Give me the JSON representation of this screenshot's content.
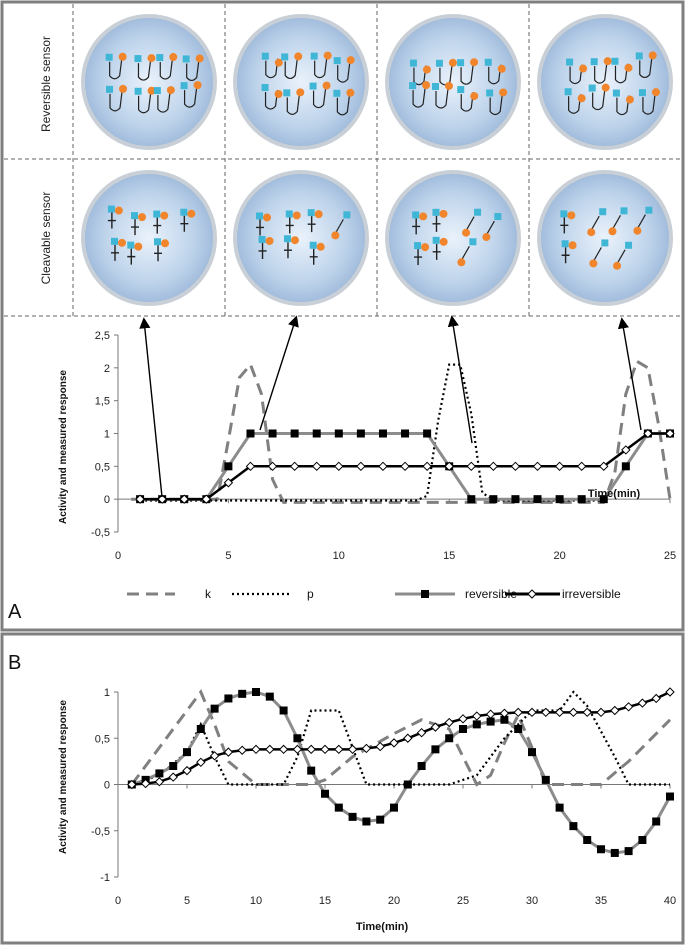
{
  "panels": {
    "a": "A",
    "b": "B"
  },
  "rows": {
    "reversible": "Reversible sensor",
    "cleavable": "Cleavable sensor"
  },
  "colors": {
    "cyan": "#3fb6d6",
    "orange": "#f0852c",
    "circle": "#c5d8ec",
    "grey_series": "#8c8c8c",
    "border": "#7f7f7f"
  },
  "chart_data": [
    {
      "type": "line",
      "panel": "A",
      "xlabel": "Time(min)",
      "ylabel": "Activity and measured  response",
      "xlim": [
        0,
        25
      ],
      "ylim": [
        -0.5,
        2.5
      ],
      "xticks": [
        "0",
        "5",
        "10",
        "15",
        "20",
        "25"
      ],
      "yticks": [
        "-0,5",
        "0",
        "0,5",
        "1",
        "1,5",
        "2",
        "2,5"
      ],
      "legend_position": "bottom",
      "series": [
        {
          "name": "k",
          "style": "dashed",
          "color": "#808080",
          "x": [
            0.6,
            4.5,
            5,
            5.5,
            6,
            6.5,
            7,
            7.5,
            8,
            22,
            22.5,
            23,
            23.5,
            24,
            24.5,
            25
          ],
          "y": [
            0,
            0,
            0.9,
            1.85,
            2.05,
            1.6,
            0.3,
            -0.05,
            -0.05,
            -0.05,
            0.4,
            1.6,
            2.1,
            2.0,
            1.1,
            0
          ]
        },
        {
          "name": "p",
          "style": "dotted",
          "color": "#000000",
          "x": [
            1,
            13.5,
            14,
            14.5,
            15,
            15.5,
            16,
            16.5,
            17,
            22
          ],
          "y": [
            -0.02,
            -0.02,
            0.05,
            1.2,
            2.05,
            2.05,
            1.3,
            0.1,
            -0.02,
            -0.02
          ]
        },
        {
          "name": "reversible",
          "style": "solid-square",
          "color": "#8c8c8c",
          "x": [
            1,
            2,
            3,
            4,
            5,
            6,
            7,
            8,
            9,
            10,
            11,
            12,
            13,
            14,
            15,
            16,
            17,
            18,
            19,
            20,
            21,
            22,
            23,
            24,
            25
          ],
          "y": [
            0,
            0,
            0,
            0,
            0.5,
            1,
            1,
            1,
            1,
            1,
            1,
            1,
            1,
            1,
            0.5,
            0,
            0,
            0,
            0,
            0,
            0,
            0,
            0.5,
            1,
            1
          ]
        },
        {
          "name": "irreversible",
          "style": "solid-diamond",
          "color": "#000000",
          "x": [
            1,
            2,
            3,
            4,
            5,
            6,
            7,
            8,
            9,
            10,
            11,
            12,
            13,
            14,
            15,
            16,
            17,
            18,
            19,
            20,
            21,
            22,
            23,
            24,
            25
          ],
          "y": [
            0,
            0,
            0,
            0,
            0.25,
            0.5,
            0.5,
            0.5,
            0.5,
            0.5,
            0.5,
            0.5,
            0.5,
            0.5,
            0.5,
            0.5,
            0.5,
            0.5,
            0.5,
            0.5,
            0.5,
            0.5,
            0.75,
            1,
            1
          ]
        }
      ]
    },
    {
      "type": "line",
      "panel": "B",
      "xlabel": "Time(min)",
      "ylabel": "Activity and measured  response",
      "xlim": [
        0,
        40
      ],
      "ylim": [
        -1,
        1
      ],
      "xticks": [
        "0",
        "5",
        "10",
        "15",
        "20",
        "25",
        "30",
        "35",
        "40"
      ],
      "yticks": [
        "-1",
        "-0,5",
        "0",
        "0,5",
        "1"
      ],
      "series": [
        {
          "name": "k",
          "style": "dashed",
          "color": "#808080",
          "x": [
            1,
            3,
            5,
            6,
            7,
            8,
            10,
            13,
            14,
            15,
            17,
            20,
            22,
            24,
            25,
            26,
            27,
            28,
            29,
            30,
            31,
            34,
            35,
            37,
            40
          ],
          "y": [
            0,
            0.4,
            0.8,
            1.0,
            0.65,
            0.25,
            0.0,
            0.0,
            0.0,
            0.05,
            0.3,
            0.55,
            0.7,
            0.6,
            0.3,
            0.0,
            0.1,
            0.45,
            0.75,
            0.4,
            0.0,
            0.0,
            0.0,
            0.25,
            0.7
          ]
        },
        {
          "name": "p",
          "style": "dotted",
          "color": "#000000",
          "x": [
            1,
            3,
            5,
            6,
            7,
            8,
            10,
            12,
            13,
            14,
            16,
            17,
            18,
            20,
            22,
            24,
            26,
            28,
            30,
            32,
            33,
            34,
            36,
            37,
            38,
            40
          ],
          "y": [
            0,
            0.1,
            0.35,
            0.65,
            0.3,
            0.0,
            0.0,
            0.0,
            0.3,
            0.8,
            0.8,
            0.4,
            0.0,
            0.0,
            0.0,
            0.0,
            0.1,
            0.5,
            0.8,
            0.8,
            1.0,
            0.85,
            0.3,
            0.0,
            0.0,
            0.0
          ]
        },
        {
          "name": "reversible",
          "style": "solid-square",
          "color": "#8c8c8c",
          "x": [
            1,
            2,
            3,
            4,
            5,
            6,
            7,
            8,
            9,
            10,
            11,
            12,
            13,
            14,
            15,
            16,
            17,
            18,
            19,
            20,
            21,
            22,
            23,
            24,
            25,
            26,
            27,
            28,
            29,
            30,
            31,
            32,
            33,
            34,
            35,
            36,
            37,
            38,
            39,
            40
          ],
          "y": [
            0,
            0.05,
            0.12,
            0.2,
            0.35,
            0.6,
            0.82,
            0.93,
            0.98,
            1.0,
            0.95,
            0.8,
            0.5,
            0.15,
            -0.1,
            -0.25,
            -0.35,
            -0.4,
            -0.38,
            -0.25,
            0.0,
            0.2,
            0.38,
            0.5,
            0.6,
            0.65,
            0.68,
            0.7,
            0.6,
            0.35,
            0.05,
            -0.25,
            -0.45,
            -0.6,
            -0.7,
            -0.74,
            -0.72,
            -0.6,
            -0.4,
            -0.13
          ]
        },
        {
          "name": "irreversible",
          "style": "solid-diamond",
          "color": "#000000",
          "x": [
            1,
            2,
            3,
            4,
            5,
            6,
            7,
            8,
            9,
            10,
            11,
            12,
            13,
            14,
            15,
            16,
            17,
            18,
            19,
            20,
            21,
            22,
            23,
            24,
            25,
            26,
            27,
            28,
            29,
            30,
            31,
            32,
            33,
            34,
            35,
            36,
            37,
            38,
            39,
            40
          ],
          "y": [
            0,
            0.01,
            0.03,
            0.08,
            0.15,
            0.24,
            0.31,
            0.35,
            0.37,
            0.38,
            0.38,
            0.38,
            0.38,
            0.38,
            0.38,
            0.38,
            0.38,
            0.39,
            0.41,
            0.45,
            0.5,
            0.56,
            0.62,
            0.67,
            0.71,
            0.74,
            0.76,
            0.77,
            0.78,
            0.78,
            0.78,
            0.78,
            0.78,
            0.78,
            0.78,
            0.8,
            0.84,
            0.88,
            0.93,
            1.0
          ]
        }
      ]
    }
  ]
}
